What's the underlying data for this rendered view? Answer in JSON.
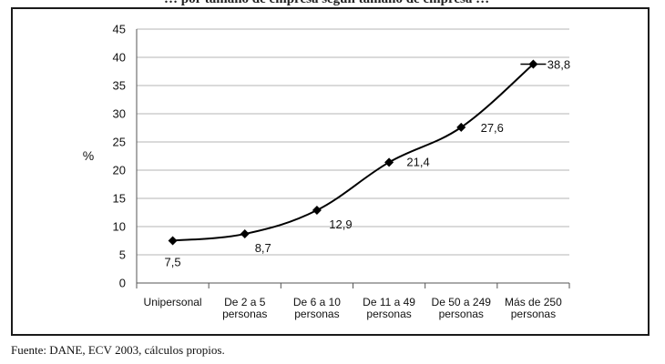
{
  "title": "… por tamaño de empresa según tamaño de empresa …",
  "chart_data": {
    "type": "line",
    "ylabel": "%",
    "xlabel": "",
    "ylim": [
      0,
      45
    ],
    "yticks": [
      "0",
      "5",
      "10",
      "15",
      "20",
      "25",
      "30",
      "35",
      "40",
      "45"
    ],
    "grid": true,
    "categories": [
      [
        "Unipersonal"
      ],
      [
        "De 2 a 5",
        "personas"
      ],
      [
        "De 6 a 10",
        "personas"
      ],
      [
        "De 11 a 49",
        "personas"
      ],
      [
        "De 50 a 249",
        "personas"
      ],
      [
        "Más de 250",
        "personas"
      ]
    ],
    "values": [
      7.5,
      8.7,
      12.9,
      21.4,
      27.6,
      38.8
    ],
    "data_labels": [
      "7,5",
      "8,7",
      "12,9",
      "21,4",
      "27,6",
      "38,8"
    ],
    "line_color": "#000000",
    "grid_color": "#b5b5b5"
  },
  "source": {
    "prefix": "Fuente: ",
    "org1": "DANE",
    "sep": ", ",
    "org2": "ECV",
    "rest": " 2003, cálculos propios."
  }
}
